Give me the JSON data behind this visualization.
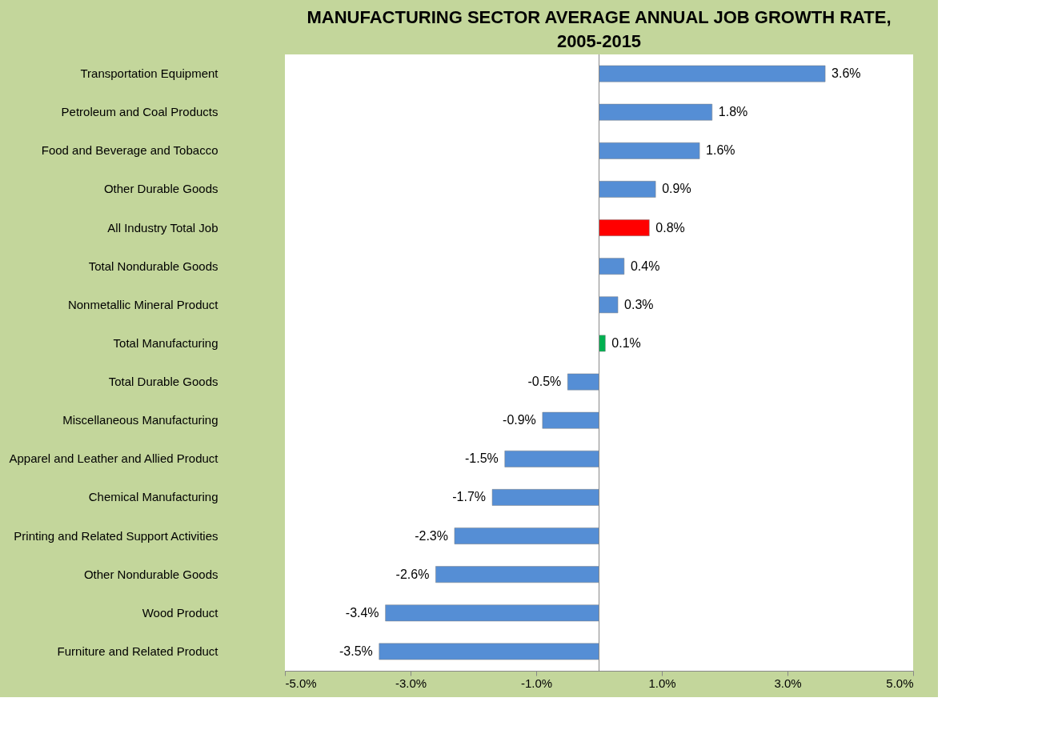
{
  "chart_data": {
    "type": "bar",
    "orientation": "horizontal",
    "title": "MANUFACTURING SECTOR AVERAGE ANNUAL JOB GROWTH RATE, 2005-2015",
    "categories": [
      "Transportation Equipment",
      "Petroleum and Coal Products",
      "Food and Beverage and Tobacco",
      "Other Durable Goods",
      "All Industry Total Job",
      "Total Nondurable Goods",
      "Nonmetallic Mineral Product",
      "Total Manufacturing",
      "Total Durable Goods",
      "Miscellaneous Manufacturing",
      "Apparel and Leather and Allied Product",
      "Chemical Manufacturing",
      "Printing and Related Support Activities",
      "Other Nondurable Goods",
      "Wood Product",
      "Furniture and Related Product"
    ],
    "values": [
      3.6,
      1.8,
      1.6,
      0.9,
      0.8,
      0.4,
      0.3,
      0.1,
      -0.5,
      -0.9,
      -1.5,
      -1.7,
      -2.3,
      -2.6,
      -3.4,
      -3.5
    ],
    "colors": [
      "#558ed5",
      "#558ed5",
      "#558ed5",
      "#558ed5",
      "#ff0000",
      "#558ed5",
      "#558ed5",
      "#00b050",
      "#558ed5",
      "#558ed5",
      "#558ed5",
      "#558ed5",
      "#558ed5",
      "#558ed5",
      "#558ed5",
      "#558ed5"
    ],
    "value_labels": [
      "3.6%",
      "1.8%",
      "1.6%",
      "0.9%",
      "0.8%",
      "0.4%",
      "0.3%",
      "0.1%",
      "-0.5%",
      "-0.9%",
      "-1.5%",
      "-1.7%",
      "-2.3%",
      "-2.6%",
      "-3.4%",
      "-3.5%"
    ],
    "xlim": [
      -5,
      5
    ],
    "xticks": [
      {
        "value": -5,
        "label": "-5.0%"
      },
      {
        "value": -3,
        "label": "-3.0%"
      },
      {
        "value": -1,
        "label": "-1.0%"
      },
      {
        "value": 1,
        "label": "1.0%"
      },
      {
        "value": 3,
        "label": "3.0%"
      },
      {
        "value": 5,
        "label": "5.0%"
      }
    ],
    "grid": false,
    "legend": false
  }
}
